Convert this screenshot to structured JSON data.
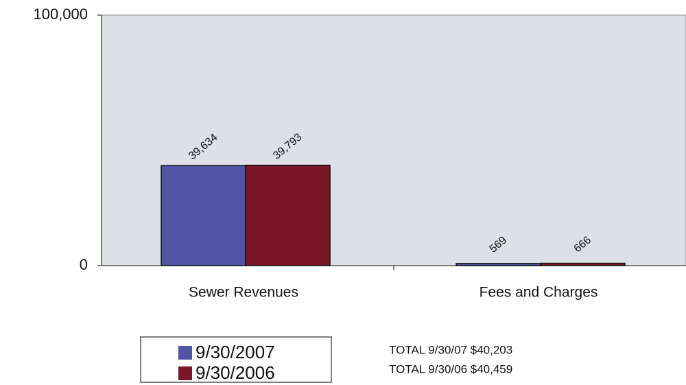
{
  "chart_data": {
    "type": "bar",
    "categories": [
      "Sewer Revenues",
      "Fees and Charges"
    ],
    "series": [
      {
        "name": "9/30/2007",
        "color": "#5252a6",
        "values": [
          39634,
          569
        ],
        "value_labels": [
          "39,634",
          "569"
        ]
      },
      {
        "name": "9/30/2006",
        "color": "#7b1529",
        "values": [
          39793,
          666
        ],
        "value_labels": [
          "39,793",
          "666"
        ]
      }
    ],
    "ylim": [
      0,
      100000
    ],
    "yticks": [
      0,
      {
        "value": 100000,
        "label": "100,000"
      }
    ],
    "annotations": [
      "TOTAL 9/30/07 $40,203",
      "TOTAL 9/30/06 $40,459"
    ],
    "legend": "bottom"
  }
}
